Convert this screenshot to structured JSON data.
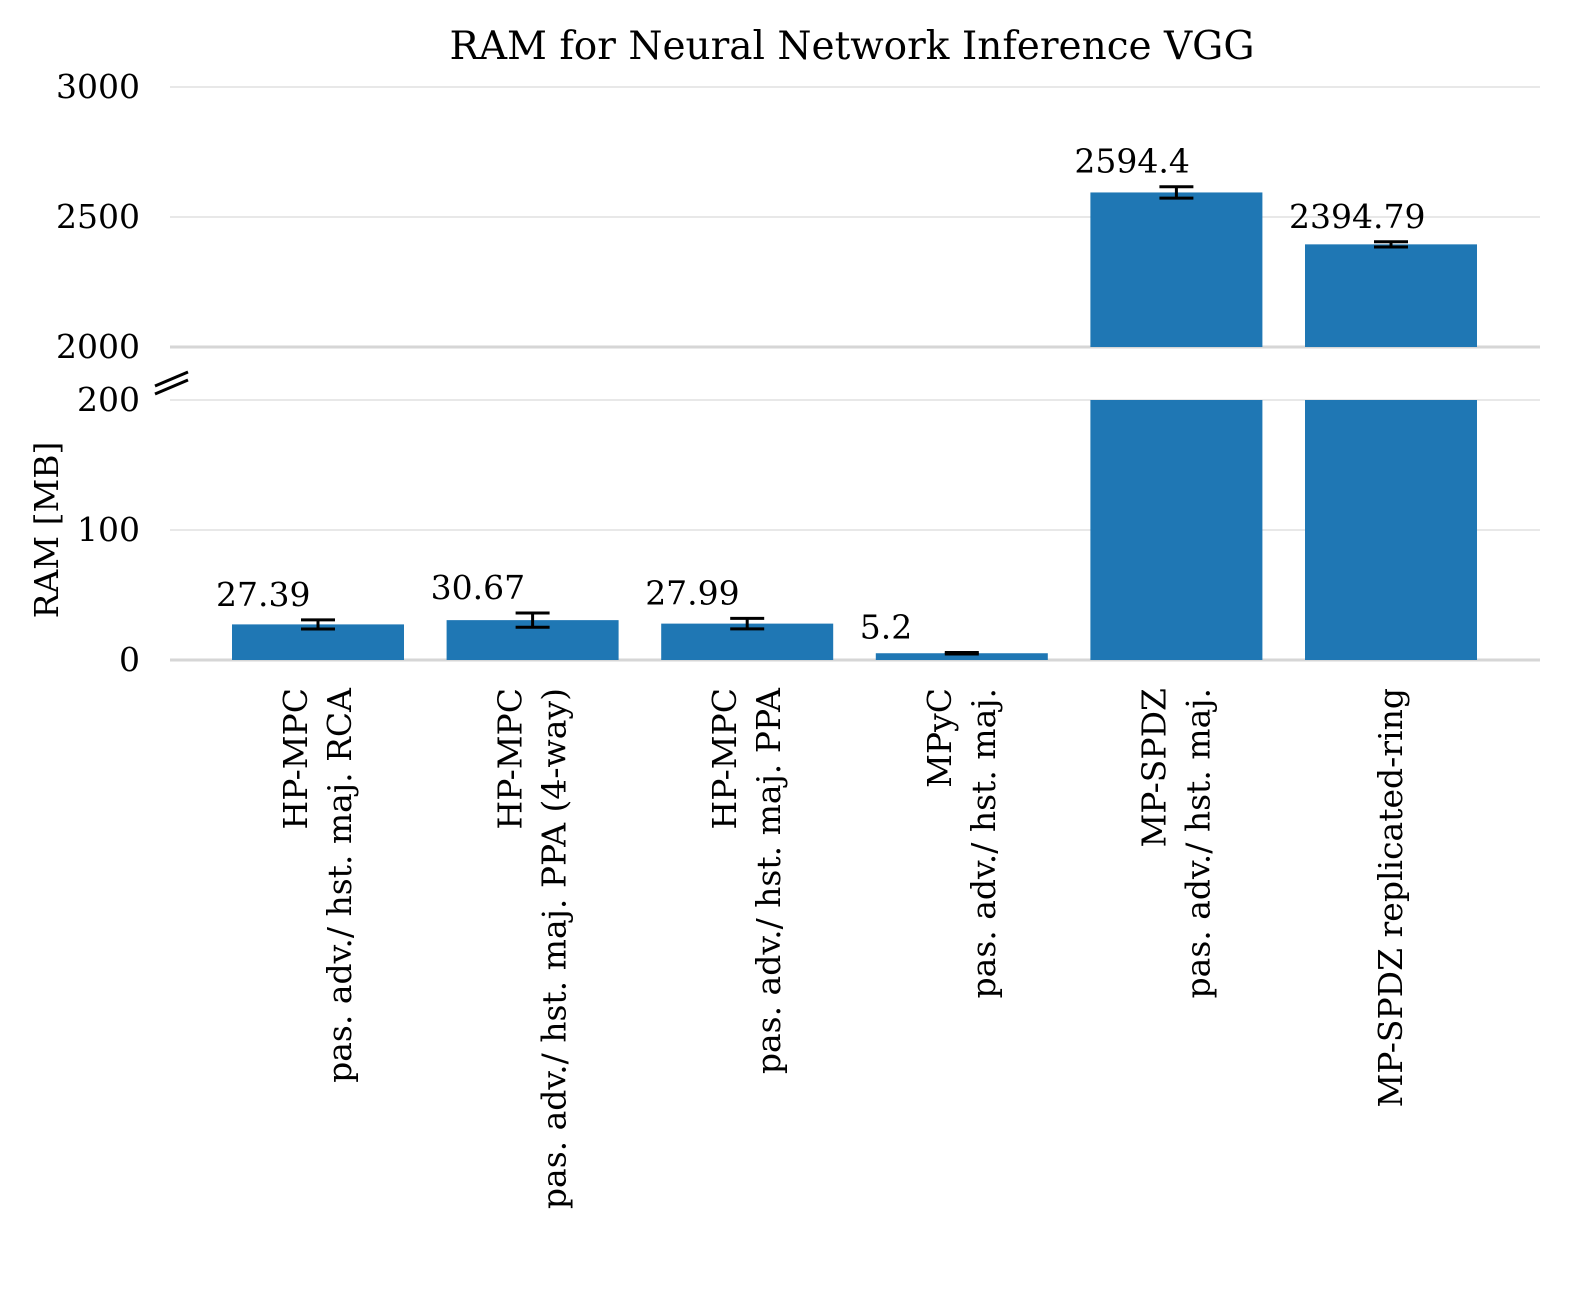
{
  "chart_data": {
    "type": "bar",
    "title": "RAM for Neural Network Inference VGG",
    "xlabel": "",
    "ylabel": "RAM [MB]",
    "broken_axis": true,
    "lower_ylim": [
      0,
      200
    ],
    "upper_ylim": [
      2000,
      3000
    ],
    "lower_yticks": [
      "0",
      "100",
      "200"
    ],
    "upper_yticks": [
      "2000",
      "2500",
      "3000"
    ],
    "grid": "horizontal",
    "bar_color": "#1f77b4",
    "categories": [
      [
        "HP-MPC",
        "pas. adv./ hst. maj. RCA"
      ],
      [
        "HP-MPC",
        "pas. adv./ hst. maj. PPA (4-way)"
      ],
      [
        "HP-MPC",
        "pas. adv./ hst. maj. PPA"
      ],
      [
        "MPyC",
        "pas. adv./ hst. maj."
      ],
      [
        "MP-SPDZ",
        "pas. adv./ hst. maj."
      ],
      [
        "MP-SPDZ replicated-ring"
      ]
    ],
    "values": [
      27.39,
      30.67,
      27.99,
      5.2,
      2594.4,
      2394.79
    ],
    "value_labels": [
      "27.39",
      "30.67",
      "27.99",
      "5.2",
      "2594.4",
      "2394.79"
    ],
    "error": [
      3.5,
      5.5,
      4,
      0.6,
      22,
      10
    ]
  }
}
